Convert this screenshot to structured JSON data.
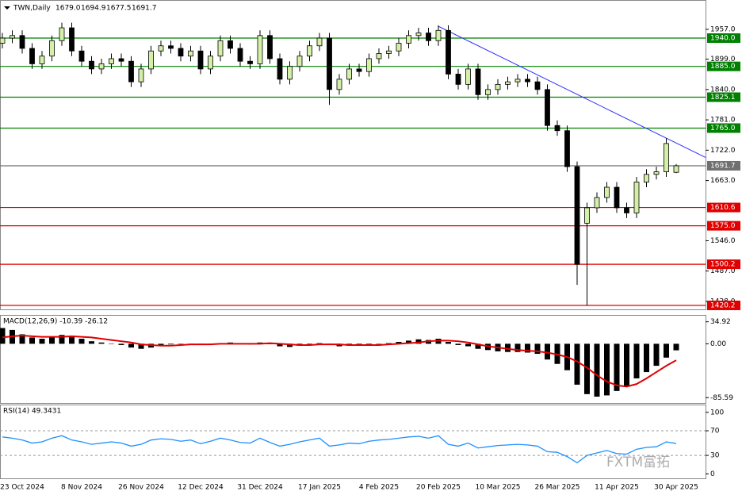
{
  "header": {
    "symbol": "TWN,Daily",
    "ohlc": [
      "1679.0",
      "1694.9",
      "1677.5",
      "1691.7"
    ]
  },
  "watermark": "FXTM富拓",
  "chart_data": [
    {
      "type": "candlestick",
      "categories": [
        null,
        null,
        "23 Oct 2024",
        null,
        null,
        null,
        null,
        null,
        "8 Nov 2024",
        null,
        null,
        null,
        null,
        null,
        "26 Nov 2024",
        null,
        null,
        null,
        null,
        null,
        "12 Dec 2024",
        null,
        null,
        null,
        null,
        null,
        "31 Dec 2024",
        null,
        null,
        null,
        null,
        null,
        "17 Jan 2025",
        null,
        null,
        null,
        null,
        null,
        "4 Feb 2025",
        null,
        null,
        null,
        null,
        null,
        "20 Feb 2025",
        null,
        null,
        null,
        null,
        null,
        "10 Mar 2025",
        null,
        null,
        null,
        null,
        null,
        "26 Mar 2025",
        null,
        null,
        null,
        null,
        null,
        "11 Apr 2025",
        null,
        null,
        null,
        null,
        null,
        "30 Apr 2025"
      ],
      "open": [
        1930,
        1940,
        1945,
        1920,
        1890,
        1905,
        1935,
        1960,
        1915,
        1895,
        1880,
        1890,
        1900,
        1895,
        1855,
        1880,
        1915,
        1925,
        1920,
        1905,
        1915,
        1880,
        1905,
        1935,
        1920,
        1895,
        1890,
        1945,
        1900,
        1860,
        1885,
        1905,
        1925,
        1940,
        1840,
        1860,
        1880,
        1875,
        1900,
        1910,
        1915,
        1930,
        1945,
        1950,
        1935,
        1955,
        1870,
        1850,
        1880,
        1830,
        1840,
        1850,
        1855,
        1860,
        1855,
        1840,
        1770,
        1760,
        1690,
        1580,
        1610,
        1630,
        1650,
        1610,
        1600,
        1660,
        1675,
        1680,
        1679
      ],
      "high": [
        1950,
        1955,
        1955,
        1930,
        1915,
        1945,
        1970,
        1970,
        1925,
        1905,
        1900,
        1910,
        1910,
        1905,
        1890,
        1925,
        1935,
        1935,
        1930,
        1925,
        1925,
        1915,
        1945,
        1945,
        1930,
        1905,
        1955,
        1955,
        1910,
        1895,
        1915,
        1935,
        1950,
        1950,
        1870,
        1890,
        1890,
        1910,
        1920,
        1925,
        1940,
        1955,
        1960,
        1960,
        1965,
        1965,
        1880,
        1890,
        1890,
        1850,
        1860,
        1865,
        1870,
        1870,
        1865,
        1850,
        1780,
        1770,
        1700,
        1620,
        1640,
        1660,
        1660,
        1620,
        1670,
        1685,
        1690,
        1745,
        1694.9
      ],
      "low": [
        1920,
        1930,
        1910,
        1880,
        1880,
        1895,
        1925,
        1905,
        1885,
        1870,
        1870,
        1880,
        1885,
        1845,
        1845,
        1870,
        1905,
        1910,
        1895,
        1895,
        1870,
        1870,
        1895,
        1910,
        1885,
        1880,
        1880,
        1890,
        1850,
        1850,
        1875,
        1895,
        1915,
        1810,
        1830,
        1850,
        1865,
        1865,
        1890,
        1900,
        1905,
        1920,
        1935,
        1925,
        1925,
        1860,
        1840,
        1840,
        1820,
        1820,
        1830,
        1840,
        1845,
        1845,
        1830,
        1760,
        1750,
        1680,
        1460,
        1420,
        1600,
        1620,
        1600,
        1590,
        1590,
        1650,
        1665,
        1670,
        1677.5
      ],
      "close": [
        1940,
        1945,
        1920,
        1890,
        1905,
        1935,
        1960,
        1915,
        1895,
        1880,
        1890,
        1900,
        1895,
        1855,
        1880,
        1915,
        1925,
        1920,
        1905,
        1915,
        1880,
        1905,
        1935,
        1920,
        1895,
        1890,
        1945,
        1900,
        1860,
        1885,
        1905,
        1925,
        1940,
        1840,
        1860,
        1880,
        1875,
        1900,
        1910,
        1915,
        1930,
        1945,
        1950,
        1935,
        1955,
        1870,
        1850,
        1880,
        1830,
        1840,
        1850,
        1855,
        1860,
        1855,
        1840,
        1770,
        1760,
        1690,
        1500,
        1610,
        1630,
        1650,
        1610,
        1600,
        1660,
        1675,
        1680,
        1735,
        1691.7
      ],
      "up_color": "#d4efa8",
      "down_color": "#000000",
      "ylim": [
        1414,
        2011
      ],
      "yticks": [
        {
          "value": 1957,
          "label": "1957.0"
        },
        {
          "value": 1899,
          "label": "1899.0"
        },
        {
          "value": 1840,
          "label": "1840.0"
        },
        {
          "value": 1781,
          "label": "1781.0"
        },
        {
          "value": 1722,
          "label": "1722.0"
        },
        {
          "value": 1663,
          "label": "1663.0"
        },
        {
          "value": 1546,
          "label": "1546.0"
        },
        {
          "value": 1487,
          "label": "1487.0"
        },
        {
          "value": 1428,
          "label": "1428.0"
        }
      ],
      "levels": [
        {
          "value": 1940,
          "label": "1940.0",
          "color": "#008000"
        },
        {
          "value": 1885,
          "label": "1885.0",
          "color": "#008000"
        },
        {
          "value": 1825.1,
          "label": "1825.1",
          "color": "#008000"
        },
        {
          "value": 1765,
          "label": "1765.0",
          "color": "#008000"
        },
        {
          "value": 1691.7,
          "label": "1691.7",
          "color": "#707070"
        },
        {
          "value": 1610.6,
          "label": "1610.6",
          "color": "#e00000"
        },
        {
          "value": 1575,
          "label": "1575.0",
          "color": "#e00000"
        },
        {
          "value": 1500.2,
          "label": "1500.2",
          "color": "#e00000"
        },
        {
          "value": 1420.2,
          "label": "1420.2",
          "color": "#e00000"
        }
      ],
      "trendline": {
        "color": "#3030ff",
        "start": [
          44,
          1963
        ],
        "end": [
          71,
          1708
        ]
      }
    },
    {
      "type": "macd",
      "title": "MACD(12,26,9) -10.39 -26.12",
      "histogram": {
        "color": "#000000",
        "values": [
          25,
          22,
          15,
          10,
          8,
          10,
          14,
          12,
          8,
          4,
          2,
          0,
          -2,
          -6,
          -8,
          -6,
          -3,
          -1,
          0,
          0,
          -2,
          -1,
          1,
          2,
          0,
          -1,
          2,
          0,
          -4,
          -5,
          -3,
          -1,
          1,
          -2,
          -4,
          -3,
          -3,
          -1,
          0,
          1,
          3,
          5,
          7,
          6,
          8,
          3,
          -2,
          -4,
          -8,
          -10,
          -12,
          -13,
          -13,
          -14,
          -16,
          -25,
          -32,
          -42,
          -65,
          -80,
          -84,
          -82,
          -75,
          -68,
          -55,
          -45,
          -35,
          -22,
          -10.39
        ]
      },
      "signal": {
        "color": "#e00000",
        "values": [
          10,
          12,
          13,
          12,
          11,
          11,
          11,
          12,
          11,
          10,
          8,
          6,
          4,
          2,
          -1,
          -2,
          -3,
          -3,
          -2,
          -1,
          -1,
          -1,
          0,
          0,
          0,
          0,
          0,
          1,
          0,
          -1,
          -2,
          -2,
          -1,
          -1,
          -1,
          -2,
          -2,
          -2,
          -2,
          -1,
          0,
          1,
          2,
          4,
          5,
          5,
          4,
          2,
          -1,
          -4,
          -6,
          -8,
          -10,
          -11,
          -12,
          -14,
          -17,
          -21,
          -28,
          -38,
          -50,
          -60,
          -66,
          -68,
          -64,
          -55,
          -45,
          -35,
          -26.12
        ]
      },
      "ylim": [
        -92.8,
        43.3
      ],
      "yticks": [
        34.92,
        {
          "value": 0,
          "label": "0.00"
        },
        -85.59
      ]
    },
    {
      "type": "line",
      "title": "RSI(14) 49.3431",
      "series": [
        {
          "color": "#1e90ff",
          "values": [
            60,
            58,
            55,
            50,
            52,
            58,
            62,
            55,
            52,
            48,
            50,
            52,
            50,
            45,
            48,
            55,
            57,
            56,
            53,
            55,
            49,
            53,
            58,
            55,
            51,
            50,
            58,
            51,
            45,
            48,
            52,
            55,
            58,
            45,
            47,
            50,
            49,
            53,
            55,
            56,
            58,
            60,
            61,
            58,
            62,
            48,
            45,
            50,
            42,
            44,
            46,
            47,
            48,
            47,
            45,
            36,
            35,
            28,
            18,
            30,
            34,
            38,
            33,
            32,
            40,
            43,
            44,
            52,
            49.3431
          ]
        }
      ],
      "ylim": [
        -6,
        110
      ],
      "yticks": [
        100,
        70,
        30,
        0
      ],
      "level_lines": [
        70,
        30
      ]
    }
  ]
}
